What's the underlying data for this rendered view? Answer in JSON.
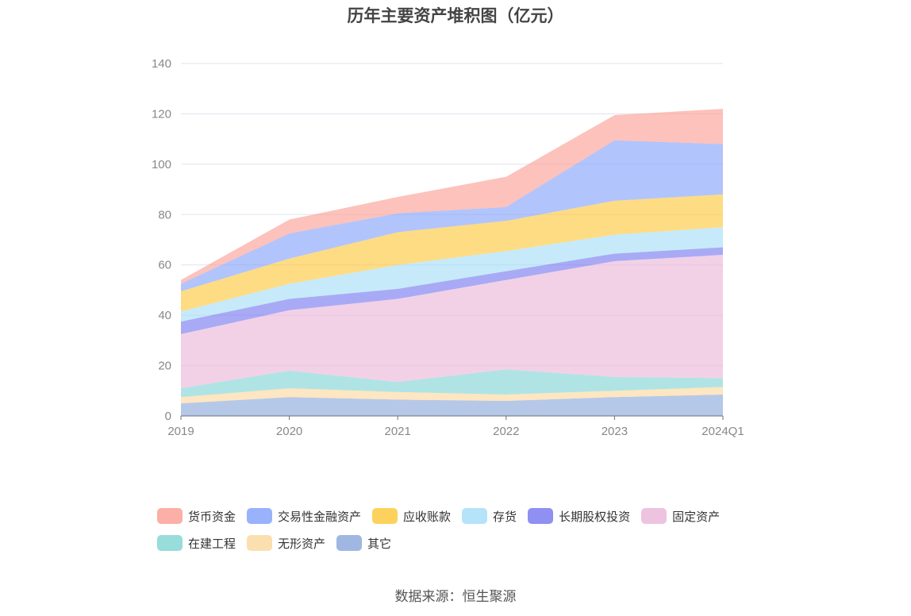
{
  "chart_data": {
    "type": "area",
    "stacked": true,
    "title": "历年主要资产堆积图（亿元）",
    "categories": [
      "2019",
      "2020",
      "2021",
      "2022",
      "2023",
      "2024Q1"
    ],
    "ylim": [
      0,
      140
    ],
    "yticks": [
      0,
      20,
      40,
      60,
      80,
      100,
      120,
      140
    ],
    "grid": true,
    "legend_position": "bottom",
    "series": [
      {
        "name": "其它",
        "color": "#8faadc",
        "values": [
          5,
          7.5,
          6.5,
          6,
          7.5,
          8.5
        ]
      },
      {
        "name": "无形资产",
        "color": "#fcd9a0",
        "values": [
          2.5,
          3.5,
          3,
          2.5,
          2.5,
          3
        ]
      },
      {
        "name": "在建工程",
        "color": "#86d6d6",
        "values": [
          3.5,
          7,
          4,
          10,
          5.5,
          3.5
        ]
      },
      {
        "name": "固定资产",
        "color": "#ebb9da",
        "values": [
          21.5,
          24,
          33,
          35.5,
          46,
          49
        ]
      },
      {
        "name": "长期股权投资",
        "color": "#7b7df0",
        "values": [
          5,
          4.5,
          4,
          3.5,
          3,
          3
        ]
      },
      {
        "name": "存货",
        "color": "#a8def8",
        "values": [
          4,
          6,
          9.5,
          8,
          7.5,
          8
        ]
      },
      {
        "name": "应收账款",
        "color": "#fdca40",
        "values": [
          8,
          10,
          13,
          12,
          13.5,
          13
        ]
      },
      {
        "name": "交易性金融资产",
        "color": "#88a5fb",
        "values": [
          3,
          10,
          7.5,
          5.5,
          24,
          20
        ]
      },
      {
        "name": "货币资金",
        "color": "#faa196",
        "values": [
          1.5,
          5.5,
          6.5,
          12,
          10,
          14
        ]
      }
    ],
    "legend_order": [
      "货币资金",
      "交易性金融资产",
      "应收账款",
      "存货",
      "长期股权投资",
      "固定资产",
      "在建工程",
      "无形资产",
      "其它"
    ]
  },
  "source": "数据来源：恒生聚源"
}
